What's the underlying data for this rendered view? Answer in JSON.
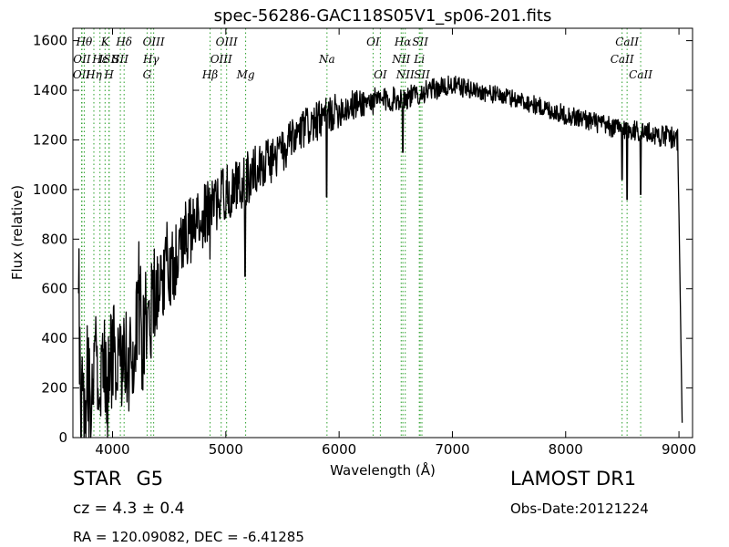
{
  "chart_data": {
    "type": "line",
    "title": "spec-56286-GAC118S05V1_sp06-201.fits",
    "xlabel": "Wavelength (Å)",
    "ylabel": "Flux (relative)",
    "xlim": [
      3650,
      9120
    ],
    "ylim": [
      0,
      1650
    ],
    "xticks": [
      4000,
      5000,
      6000,
      7000,
      8000,
      9000
    ],
    "yticks": [
      0,
      200,
      400,
      600,
      800,
      1000,
      1200,
      1400,
      1600
    ],
    "grid": false,
    "series": [
      {
        "color": "#000000",
        "anchors": [
          [
            3700,
            690
          ],
          [
            3720,
            40
          ],
          [
            3740,
            240
          ],
          [
            3760,
            60
          ],
          [
            3780,
            320
          ],
          [
            3800,
            100
          ],
          [
            3840,
            300
          ],
          [
            3880,
            150
          ],
          [
            3920,
            380
          ],
          [
            3960,
            200
          ],
          [
            4000,
            330
          ],
          [
            4050,
            220
          ],
          [
            4100,
            370
          ],
          [
            4150,
            250
          ],
          [
            4200,
            420
          ],
          [
            4230,
            600
          ],
          [
            4260,
            380
          ],
          [
            4300,
            500
          ],
          [
            4350,
            560
          ],
          [
            4400,
            620
          ],
          [
            4450,
            680
          ],
          [
            4500,
            700
          ],
          [
            4550,
            720
          ],
          [
            4600,
            790
          ],
          [
            4700,
            840
          ],
          [
            4800,
            890
          ],
          [
            4900,
            940
          ],
          [
            5000,
            990
          ],
          [
            5100,
            1010
          ],
          [
            5200,
            1050
          ],
          [
            5300,
            1100
          ],
          [
            5400,
            1120
          ],
          [
            5500,
            1150
          ],
          [
            5600,
            1200
          ],
          [
            5700,
            1250
          ],
          [
            5800,
            1270
          ],
          [
            5900,
            1300
          ],
          [
            6000,
            1320
          ],
          [
            6200,
            1350
          ],
          [
            6400,
            1360
          ],
          [
            6600,
            1370
          ],
          [
            6800,
            1400
          ],
          [
            7000,
            1420
          ],
          [
            7200,
            1400
          ],
          [
            7400,
            1380
          ],
          [
            7600,
            1360
          ],
          [
            7800,
            1330
          ],
          [
            8000,
            1300
          ],
          [
            8200,
            1280
          ],
          [
            8400,
            1250
          ],
          [
            8600,
            1240
          ],
          [
            8800,
            1220
          ],
          [
            8950,
            1210
          ],
          [
            8990,
            1200
          ],
          [
            9020,
            300
          ],
          [
            9030,
            0
          ]
        ],
        "noise": [
          [
            3650,
            250
          ],
          [
            4300,
            220
          ],
          [
            4700,
            130
          ],
          [
            5300,
            100
          ],
          [
            5800,
            80
          ],
          [
            6300,
            55
          ],
          [
            6700,
            45
          ],
          [
            7400,
            35
          ],
          [
            8000,
            40
          ],
          [
            9000,
            45
          ]
        ],
        "absorption": [
          {
            "x": 4340,
            "value": 320
          },
          {
            "x": 4860,
            "value": 720
          },
          {
            "x": 5170,
            "value": 650
          },
          {
            "x": 5890,
            "value": 970
          },
          {
            "x": 6563,
            "value": 1150
          },
          {
            "x": 8498,
            "value": 1040
          },
          {
            "x": 8542,
            "value": 960
          },
          {
            "x": 8662,
            "value": 980
          }
        ]
      }
    ],
    "lines": [
      {
        "label": "OII",
        "x": 3727,
        "row": 2
      },
      {
        "label": "Hθ",
        "x": 3750,
        "row": 0
      },
      {
        "label": "OII",
        "x": 3730,
        "row": 1
      },
      {
        "label": "Hη",
        "x": 3835,
        "row": 2
      },
      {
        "label": "Hε",
        "x": 3889,
        "row": 1
      },
      {
        "label": "K",
        "x": 3934,
        "row": 0
      },
      {
        "label": "ISII",
        "x": 3970,
        "row": 1
      },
      {
        "label": "H",
        "x": 3969,
        "row": 2
      },
      {
        "label": "Hδ",
        "x": 4102,
        "row": 0
      },
      {
        "label": "SII",
        "x": 4069,
        "row": 1
      },
      {
        "label": "OIII",
        "x": 4363,
        "row": 0
      },
      {
        "label": "Hγ",
        "x": 4340,
        "row": 1
      },
      {
        "label": "G",
        "x": 4305,
        "row": 2
      },
      {
        "label": "OIII",
        "x": 5007,
        "row": 0
      },
      {
        "label": "Hβ",
        "x": 4861,
        "row": 2
      },
      {
        "label": "OIII",
        "x": 4959,
        "row": 1
      },
      {
        "label": "Mg",
        "x": 5175,
        "row": 2
      },
      {
        "label": "Na",
        "x": 5893,
        "row": 1
      },
      {
        "label": "OI",
        "x": 6300,
        "row": 0
      },
      {
        "label": "OI",
        "x": 6364,
        "row": 2
      },
      {
        "label": "Hα",
        "x": 6563,
        "row": 0
      },
      {
        "label": "SII",
        "x": 6716,
        "row": 0
      },
      {
        "label": "NII",
        "x": 6548,
        "row": 1
      },
      {
        "label": "Li",
        "x": 6708,
        "row": 1
      },
      {
        "label": "NII",
        "x": 6584,
        "row": 2
      },
      {
        "label": "SII",
        "x": 6731,
        "row": 2
      },
      {
        "label": "CaII",
        "x": 8542,
        "row": 0
      },
      {
        "label": "CaII",
        "x": 8498,
        "row": 1
      },
      {
        "label": "CaII",
        "x": 8662,
        "row": 2
      }
    ]
  },
  "info": {
    "object_class": "STAR",
    "subclass": "G5",
    "survey": "LAMOST DR1",
    "redshift": "cz = 4.3 ± 0.4",
    "obs_date": "Obs-Date:20121224",
    "coords": "RA = 120.09082, DEC = -6.41285"
  }
}
